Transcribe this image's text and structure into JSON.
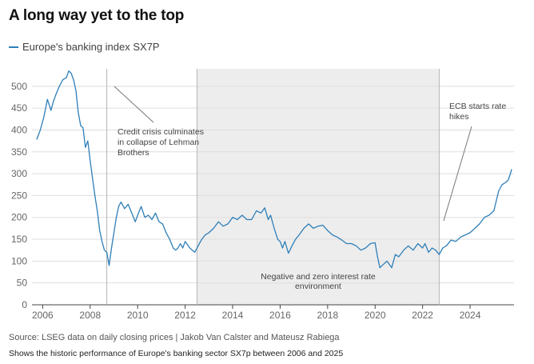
{
  "header": {
    "title": "A long way yet to the top"
  },
  "legend": {
    "series_label": "Europe's banking index SX7P",
    "color": "#2e7fb8"
  },
  "footer": {
    "source": "Source: LSEG data on daily closing prices | Jakob Van Calster and Mateusz Rabiega",
    "caption": "Shows the historic performance of Europe's banking sector SX7p between 2006 and 2025"
  },
  "chart_data": {
    "type": "line",
    "title": "A long way yet to the top",
    "xlabel": "",
    "ylabel": "",
    "xlim": [
      2005.55,
      2025.85
    ],
    "ylim": [
      0,
      540
    ],
    "yticks": [
      0,
      50,
      100,
      150,
      200,
      250,
      300,
      350,
      400,
      450,
      500
    ],
    "xticks": [
      "2006",
      "2008",
      "2010",
      "2012",
      "2014",
      "2016",
      "2018",
      "2020",
      "2022",
      "2024"
    ],
    "grid": "horizontal",
    "legend_position": "top-left",
    "series": [
      {
        "name": "Europe's banking index SX7P",
        "color": "#2e7fb8",
        "x": [
          2005.75,
          2005.9,
          2006.05,
          2006.2,
          2006.35,
          2006.45,
          2006.55,
          2006.7,
          2006.85,
          2007.0,
          2007.1,
          2007.2,
          2007.3,
          2007.4,
          2007.5,
          2007.6,
          2007.7,
          2007.8,
          2007.9,
          2008.0,
          2008.1,
          2008.2,
          2008.3,
          2008.4,
          2008.5,
          2008.6,
          2008.7,
          2008.8,
          2008.9,
          2009.0,
          2009.1,
          2009.2,
          2009.3,
          2009.45,
          2009.6,
          2009.75,
          2009.9,
          2010.0,
          2010.15,
          2010.3,
          2010.45,
          2010.6,
          2010.75,
          2010.9,
          2011.05,
          2011.2,
          2011.35,
          2011.5,
          2011.6,
          2011.7,
          2011.8,
          2011.9,
          2012.0,
          2012.2,
          2012.4,
          2012.55,
          2012.7,
          2012.85,
          2013.0,
          2013.2,
          2013.4,
          2013.6,
          2013.8,
          2014.0,
          2014.2,
          2014.4,
          2014.6,
          2014.8,
          2015.0,
          2015.2,
          2015.35,
          2015.5,
          2015.6,
          2015.75,
          2015.9,
          2016.0,
          2016.1,
          2016.2,
          2016.35,
          2016.5,
          2016.65,
          2016.8,
          2017.0,
          2017.2,
          2017.4,
          2017.6,
          2017.8,
          2018.0,
          2018.2,
          2018.4,
          2018.6,
          2018.8,
          2019.0,
          2019.2,
          2019.4,
          2019.6,
          2019.8,
          2020.0,
          2020.1,
          2020.2,
          2020.3,
          2020.5,
          2020.7,
          2020.85,
          2021.0,
          2021.2,
          2021.4,
          2021.6,
          2021.8,
          2022.0,
          2022.1,
          2022.25,
          2022.4,
          2022.55,
          2022.7,
          2022.85,
          2023.0,
          2023.2,
          2023.4,
          2023.6,
          2023.8,
          2024.0,
          2024.2,
          2024.4,
          2024.6,
          2024.8,
          2025.0,
          2025.2,
          2025.35,
          2025.5,
          2025.6,
          2025.7,
          2025.75
        ],
        "values": [
          378,
          400,
          430,
          470,
          445,
          465,
          480,
          500,
          515,
          520,
          535,
          530,
          515,
          490,
          440,
          410,
          405,
          360,
          375,
          330,
          290,
          250,
          215,
          170,
          145,
          125,
          120,
          90,
          130,
          165,
          200,
          225,
          235,
          220,
          230,
          210,
          190,
          205,
          225,
          200,
          205,
          195,
          210,
          190,
          185,
          165,
          150,
          130,
          125,
          130,
          140,
          130,
          145,
          130,
          120,
          135,
          150,
          160,
          165,
          175,
          190,
          180,
          185,
          200,
          195,
          205,
          195,
          195,
          215,
          210,
          222,
          195,
          205,
          175,
          150,
          145,
          130,
          145,
          118,
          135,
          150,
          160,
          175,
          185,
          175,
          180,
          182,
          170,
          160,
          155,
          148,
          140,
          140,
          135,
          125,
          130,
          140,
          142,
          110,
          85,
          90,
          100,
          85,
          115,
          110,
          125,
          135,
          125,
          140,
          130,
          140,
          120,
          130,
          125,
          115,
          130,
          135,
          148,
          145,
          155,
          160,
          165,
          175,
          185,
          200,
          205,
          215,
          260,
          275,
          280,
          285,
          300,
          310
        ]
      }
    ],
    "shaded_region": {
      "x_start": 2012.5,
      "x_end": 2022.7,
      "label_lines": [
        "Negative and zero interest rate",
        "environment"
      ]
    },
    "annotations": [
      {
        "x": 2008.7,
        "lines": [
          "Credit crisis culminates",
          "in collapse of Lehman",
          "Brothers"
        ]
      },
      {
        "x": 2022.7,
        "lines": [
          "ECB starts rate",
          "hikes"
        ]
      }
    ]
  }
}
